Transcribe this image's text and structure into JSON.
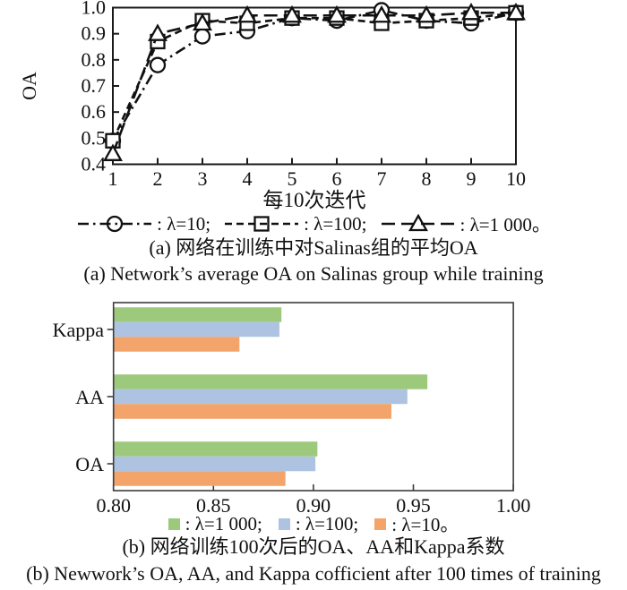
{
  "figure": {
    "panel_a": {
      "caption_zh": "(a) 网络在训练中对Salinas组的平均OA",
      "caption_en": "(a) Network’s average OA on Salinas group while training",
      "legend": [
        {
          "marker": "circle",
          "linestyle": "dashdot",
          "label": ": λ=10;"
        },
        {
          "marker": "square",
          "linestyle": "dashed",
          "label": ": λ=100;"
        },
        {
          "marker": "triangle",
          "linestyle": "longdash",
          "label": ": λ=1 000。"
        }
      ]
    },
    "panel_b": {
      "caption_zh": "(b) 网络训练100次后的OA、AA和Kappa系数",
      "caption_en": "(b) Newwork’s OA, AA, and Kappa cofficient after 100 times of training",
      "legend": [
        {
          "color": "#9DC97D",
          "label": ": λ=1 000;"
        },
        {
          "color": "#AEC3E2",
          "label": ": λ=100;"
        },
        {
          "color": "#F2A46B",
          "label": ": λ=10。"
        }
      ]
    }
  },
  "chart_data": [
    {
      "id": "oa-training-line",
      "type": "line",
      "title": "",
      "xlabel": "每10次迭代",
      "ylabel": "OA",
      "x": [
        1,
        2,
        3,
        4,
        5,
        6,
        7,
        8,
        9,
        10
      ],
      "xlim": [
        1,
        10
      ],
      "ylim": [
        0.4,
        1.0
      ],
      "xtick_labels": [
        "1",
        "2",
        "3",
        "4",
        "5",
        "6",
        "7",
        "8",
        "9",
        "10"
      ],
      "yticks": [
        0.4,
        0.5,
        0.6,
        0.7,
        0.8,
        0.9,
        1.0
      ],
      "ytick_labels": [
        "0.4",
        "0.5",
        "0.6",
        "0.7",
        "0.8",
        "0.9",
        "1.0"
      ],
      "grid": false,
      "legend_position": "below",
      "line_color": "#111111",
      "series": [
        {
          "name": "λ=10",
          "marker": "circle",
          "linestyle": "dashdot",
          "values": [
            0.49,
            0.78,
            0.89,
            0.91,
            0.96,
            0.95,
            0.99,
            0.95,
            0.94,
            0.98
          ]
        },
        {
          "name": "λ=100",
          "marker": "square",
          "linestyle": "dashed",
          "values": [
            0.49,
            0.87,
            0.95,
            0.94,
            0.96,
            0.96,
            0.94,
            0.95,
            0.96,
            0.98
          ]
        },
        {
          "name": "λ=1 000",
          "marker": "triangle",
          "linestyle": "longdash",
          "values": [
            0.44,
            0.9,
            0.94,
            0.97,
            0.97,
            0.97,
            0.97,
            0.97,
            0.98,
            0.98
          ]
        }
      ]
    },
    {
      "id": "metrics-bar",
      "type": "bar",
      "orientation": "horizontal",
      "categories": [
        "Kappa",
        "AA",
        "OA"
      ],
      "xlim": [
        0.8,
        1.0
      ],
      "xticks": [
        0.8,
        0.85,
        0.9,
        0.95,
        1.0
      ],
      "xtick_labels": [
        "0.80",
        "0.85",
        "0.90",
        "0.95",
        "1.00"
      ],
      "grid": false,
      "legend_position": "below",
      "series": [
        {
          "name": "λ=1 000",
          "color": "#9DC97D",
          "values": [
            0.884,
            0.957,
            0.902
          ]
        },
        {
          "name": "λ=100",
          "color": "#AEC3E2",
          "values": [
            0.883,
            0.947,
            0.901
          ]
        },
        {
          "name": "λ=10",
          "color": "#F2A46B",
          "values": [
            0.863,
            0.939,
            0.886
          ]
        }
      ]
    }
  ]
}
